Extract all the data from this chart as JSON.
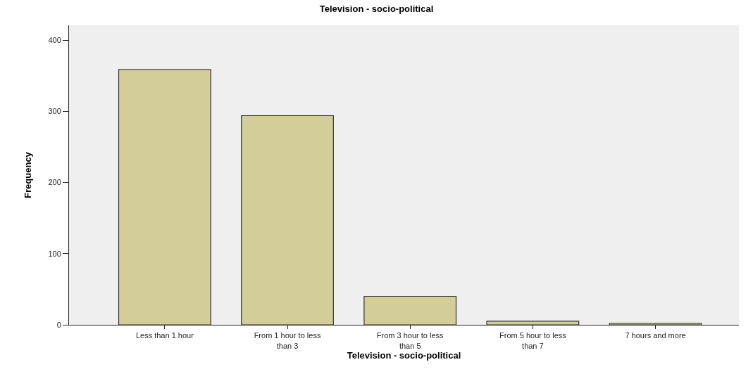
{
  "chart_data": {
    "type": "bar",
    "title": "Television - socio-political",
    "xlabel": "Television - socio-political",
    "ylabel": "Frequency",
    "categories": [
      "Less than 1 hour",
      "From 1 hour to less than 3",
      "From 3 hour to less than 5",
      "From 5 hour to less than 7",
      "7 hours and more"
    ],
    "values": [
      359,
      294,
      40,
      5,
      2
    ],
    "color": "#d3cd98",
    "ylim": [
      0,
      421
    ],
    "yticks": [
      0,
      100,
      200,
      300,
      400
    ],
    "grid": false
  }
}
